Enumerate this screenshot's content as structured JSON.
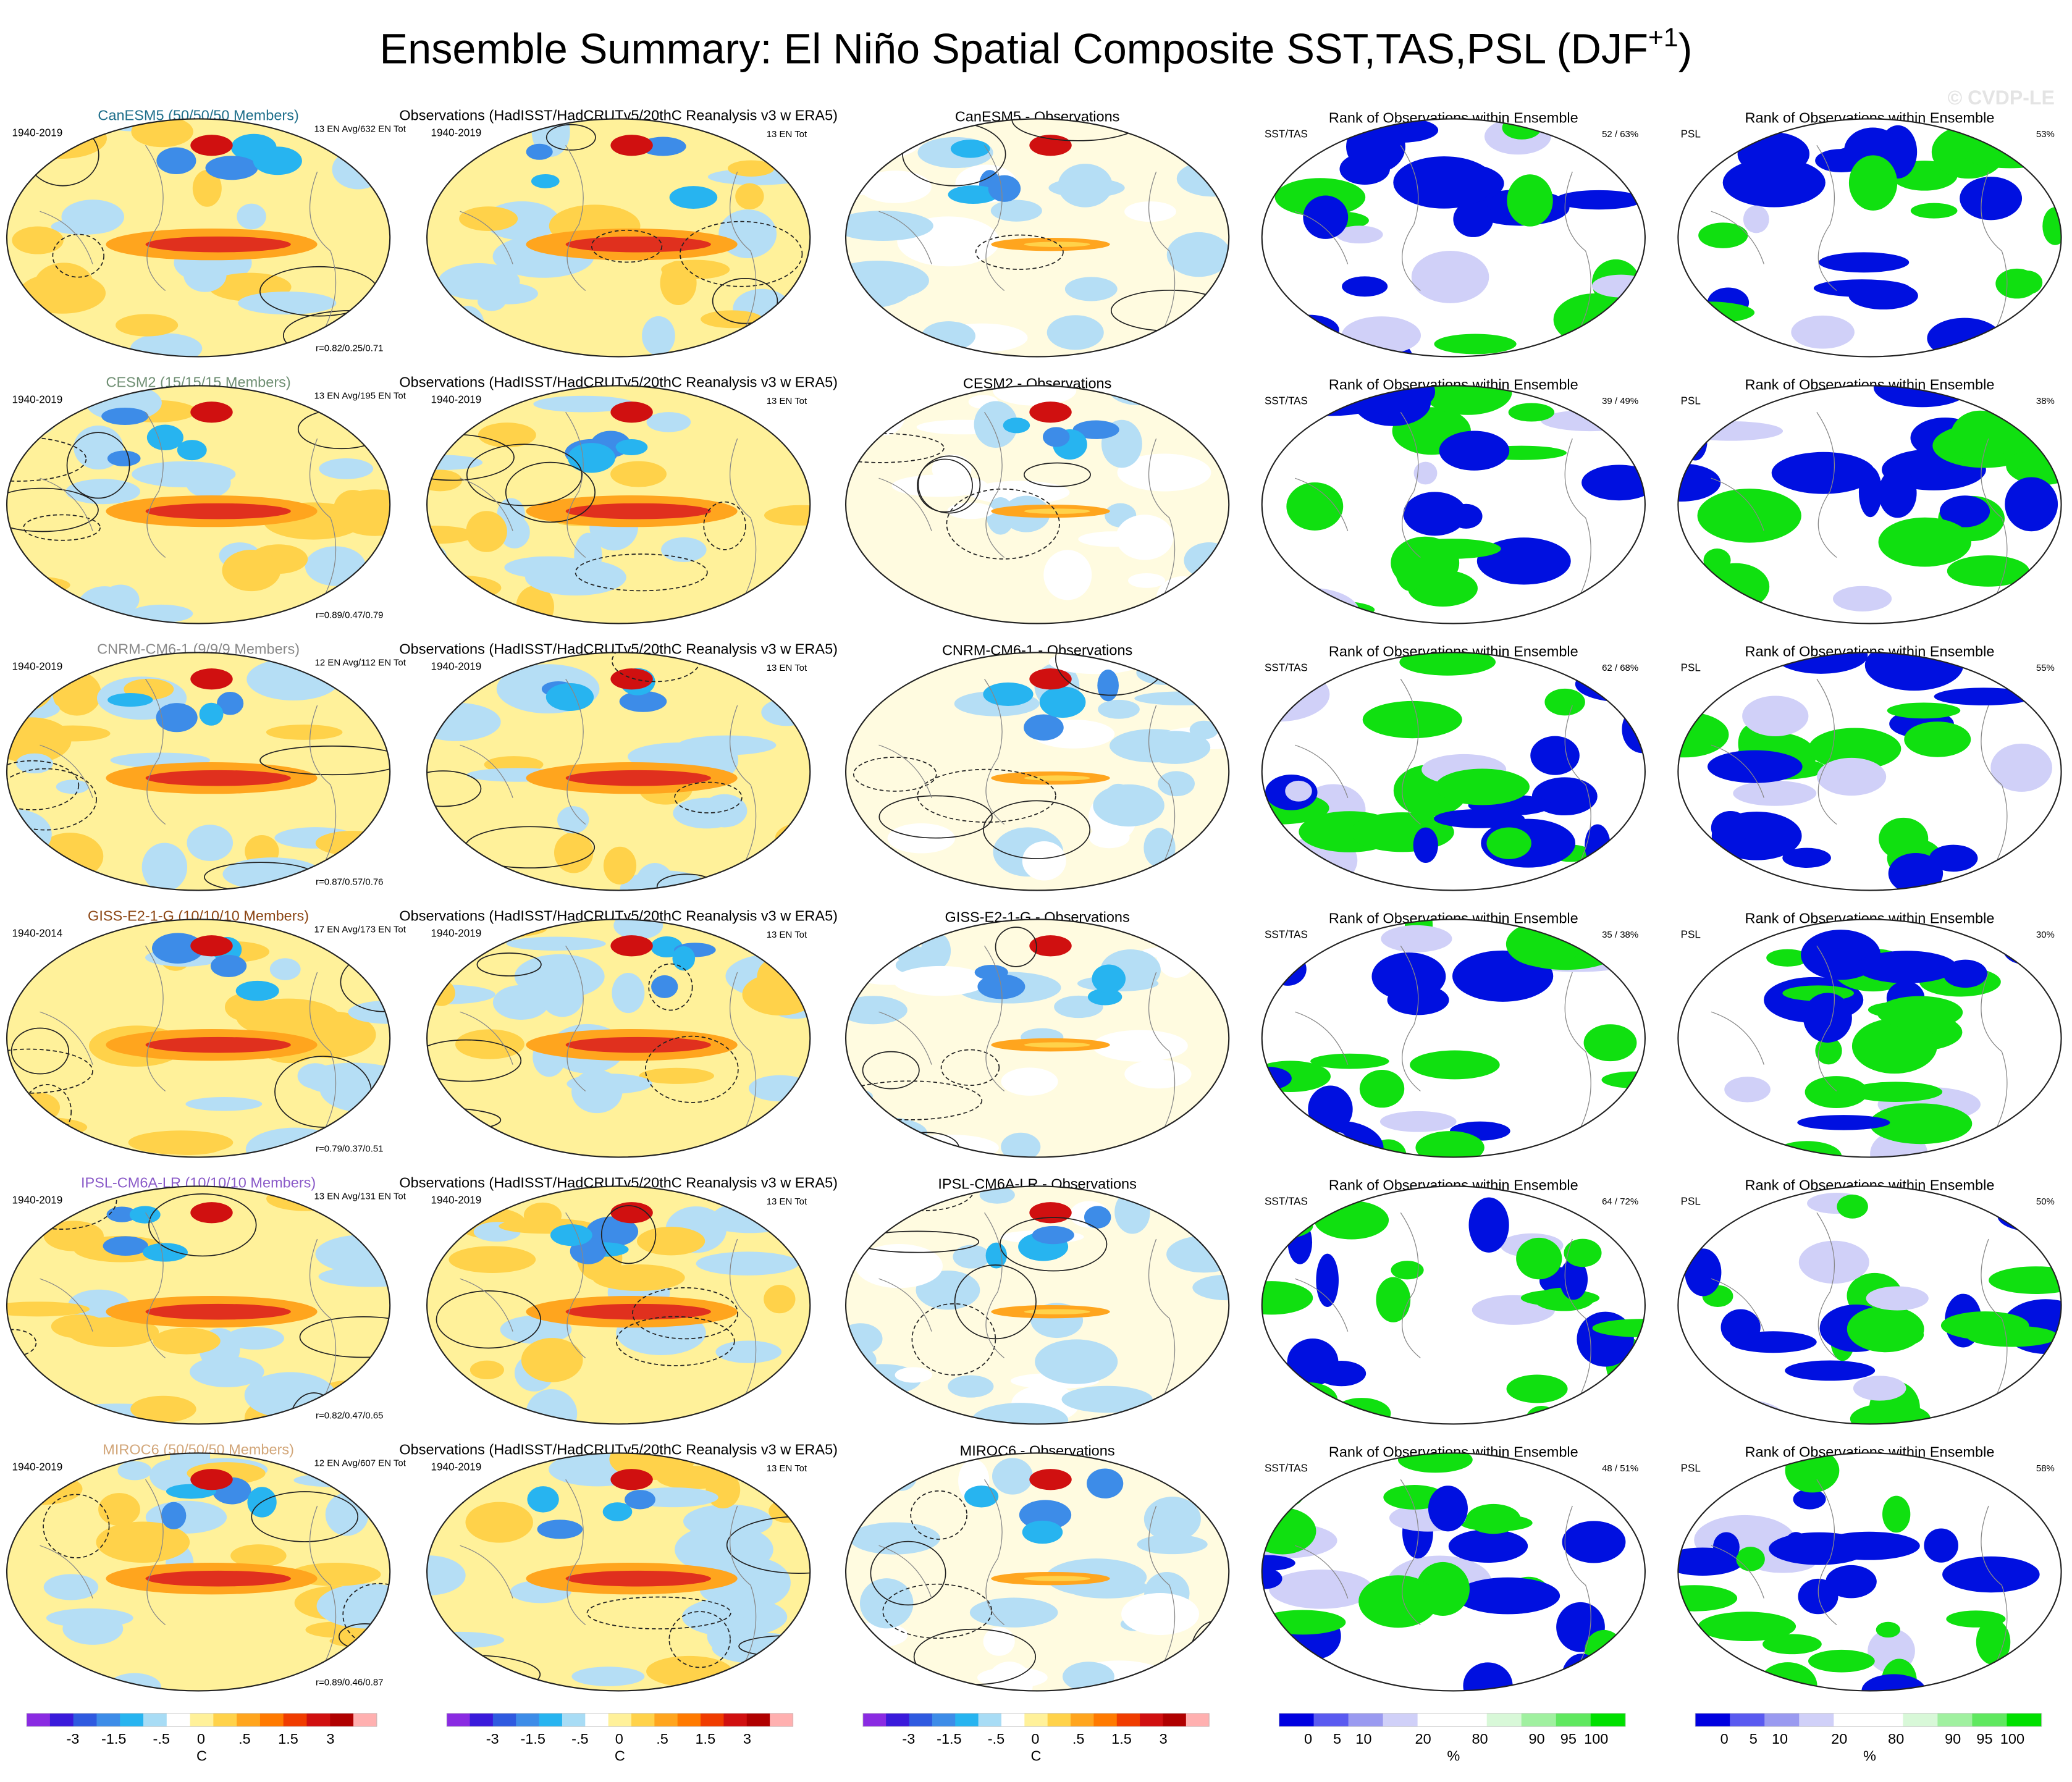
{
  "title": {
    "main": "Ensemble Summary: El Niño Spatial Composite SST,TAS,PSL (DJF",
    "superscript": "+1",
    "close": ")"
  },
  "watermark": "© CVDP-LE",
  "rows": [
    {
      "model_title": "CanESM5 (50/50/50 Members)",
      "title_color": "#1f6f8b",
      "model_period": "1940-2019",
      "model_info": "13 EN Avg/632 EN Tot",
      "model_corr": "r=0.82/0.25/0.71",
      "obs_title": "Observations (HadISST/HadCRUTv5/20thC Reanalysis v3 w ERA5)",
      "obs_period": "1940-2019",
      "obs_info": "13 EN Tot",
      "diff_title": "CanESM5 - Observations",
      "rank_title": "Rank of Observations within Ensemble",
      "rank_label": "SST/TAS",
      "rank_pct": "52 / 63%",
      "rank_psl_title": "Rank of Observations within Ensemble",
      "rank_psl_label": "PSL",
      "rank_psl_pct": "53%"
    },
    {
      "model_title": "CESM2 (15/15/15 Members)",
      "title_color": "#6f8f73",
      "model_period": "1940-2019",
      "model_info": "13 EN Avg/195 EN Tot",
      "model_corr": "r=0.89/0.47/0.79",
      "obs_title": "Observations (HadISST/HadCRUTv5/20thC Reanalysis v3 w ERA5)",
      "obs_period": "1940-2019",
      "obs_info": "13 EN Tot",
      "diff_title": "CESM2 - Observations",
      "rank_title": "Rank of Observations within Ensemble",
      "rank_label": "SST/TAS",
      "rank_pct": "39 / 49%",
      "rank_psl_title": "Rank of Observations within Ensemble",
      "rank_psl_label": "PSL",
      "rank_psl_pct": "38%"
    },
    {
      "model_title": "CNRM-CM6-1 (9/9/9 Members)",
      "title_color": "#8a8a8a",
      "model_period": "1940-2019",
      "model_info": "12 EN Avg/112 EN Tot",
      "model_corr": "r=0.87/0.57/0.76",
      "obs_title": "Observations (HadISST/HadCRUTv5/20thC Reanalysis v3 w ERA5)",
      "obs_period": "1940-2019",
      "obs_info": "13 EN Tot",
      "diff_title": "CNRM-CM6-1 - Observations",
      "rank_title": "Rank of Observations within Ensemble",
      "rank_label": "SST/TAS",
      "rank_pct": "62 / 68%",
      "rank_psl_title": "Rank of Observations within Ensemble",
      "rank_psl_label": "PSL",
      "rank_psl_pct": "55%"
    },
    {
      "model_title": "GISS-E2-1-G (10/10/10 Members)",
      "title_color": "#8b4513",
      "model_period": "1940-2014",
      "model_info": "17 EN Avg/173 EN Tot",
      "model_corr": "r=0.79/0.37/0.51",
      "obs_title": "Observations (HadISST/HadCRUTv5/20thC Reanalysis v3 w ERA5)",
      "obs_period": "1940-2019",
      "obs_info": "13 EN Tot",
      "diff_title": "GISS-E2-1-G - Observations",
      "rank_title": "Rank of Observations within Ensemble",
      "rank_label": "SST/TAS",
      "rank_pct": "35 / 38%",
      "rank_psl_title": "Rank of Observations within Ensemble",
      "rank_psl_label": "PSL",
      "rank_psl_pct": "30%"
    },
    {
      "model_title": "IPSL-CM6A-LR (10/10/10 Members)",
      "title_color": "#8a5ac8",
      "model_period": "1940-2019",
      "model_info": "13 EN Avg/131 EN Tot",
      "model_corr": "r=0.82/0.47/0.65",
      "obs_title": "Observations (HadISST/HadCRUTv5/20thC Reanalysis v3 w ERA5)",
      "obs_period": "1940-2019",
      "obs_info": "13 EN Tot",
      "diff_title": "IPSL-CM6A-LR - Observations",
      "rank_title": "Rank of Observations within Ensemble",
      "rank_label": "SST/TAS",
      "rank_pct": "64 / 72%",
      "rank_psl_title": "Rank of Observations within Ensemble",
      "rank_psl_label": "PSL",
      "rank_psl_pct": "50%"
    },
    {
      "model_title": "MIROC6 (50/50/50 Members)",
      "title_color": "#d2a679",
      "model_period": "1940-2019",
      "model_info": "12 EN Avg/607 EN Tot",
      "model_corr": "r=0.89/0.46/0.87",
      "obs_title": "Observations (HadISST/HadCRUTv5/20thC Reanalysis v3 w ERA5)",
      "obs_period": "1940-2019",
      "obs_info": "13 EN Tot",
      "diff_title": "MIROC6 - Observations",
      "rank_title": "Rank of Observations within Ensemble",
      "rank_label": "SST/TAS",
      "rank_pct": "48 / 51%",
      "rank_psl_title": "Rank of Observations within Ensemble",
      "rank_psl_label": "PSL",
      "rank_psl_pct": "58%"
    }
  ],
  "colorbars": [
    {
      "kind": "temperature",
      "ticks": [
        "-3",
        "-1.5",
        "-.5",
        "0",
        ".5",
        "1.5",
        "3"
      ],
      "unit": "C"
    },
    {
      "kind": "temperature",
      "ticks": [
        "-3",
        "-1.5",
        "-.5",
        "0",
        ".5",
        "1.5",
        "3"
      ],
      "unit": "C"
    },
    {
      "kind": "temperature",
      "ticks": [
        "-3",
        "-1.5",
        "-.5",
        "0",
        ".5",
        "1.5",
        "3"
      ],
      "unit": "C"
    },
    {
      "kind": "rank",
      "ticks": [
        "0",
        "5",
        "10",
        "20",
        "80",
        "90",
        "95",
        "100"
      ],
      "unit": "%"
    },
    {
      "kind": "rank",
      "ticks": [
        "0",
        "5",
        "10",
        "20",
        "80",
        "90",
        "95",
        "100"
      ],
      "unit": "%"
    }
  ]
}
